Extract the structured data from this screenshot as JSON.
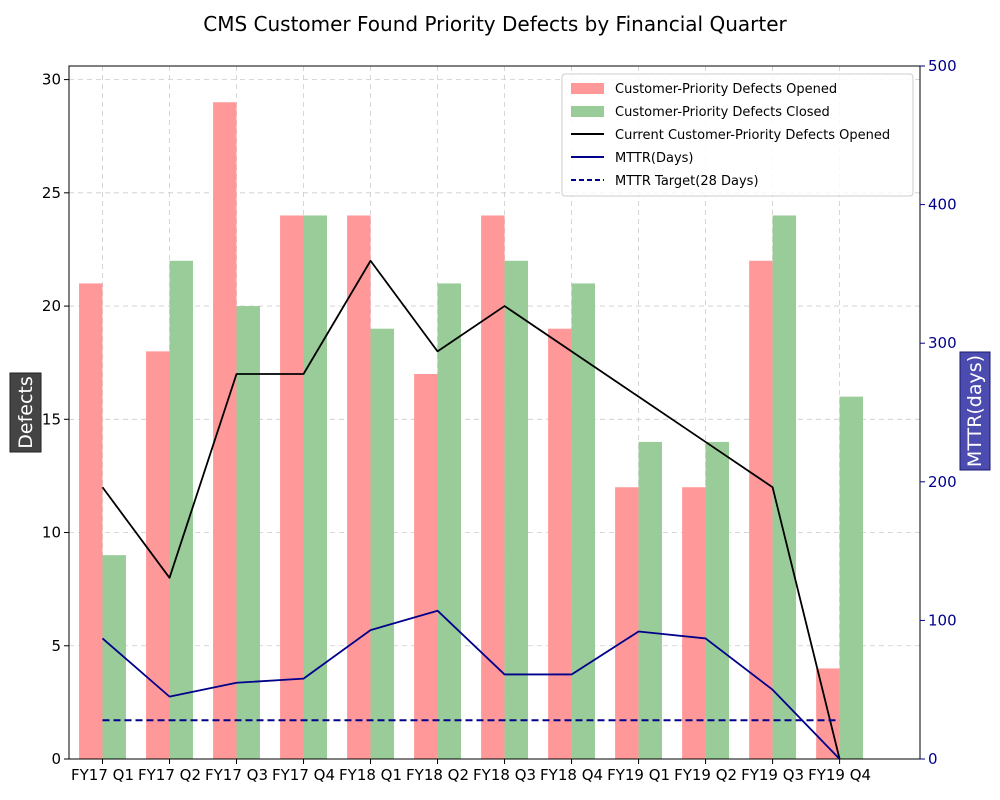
{
  "chart_data": {
    "type": "bar",
    "title": "CMS Customer Found Priority Defects by Financial Quarter",
    "categories": [
      "FY17 Q1",
      "FY17 Q2",
      "FY17 Q3",
      "FY17 Q4",
      "FY18 Q1",
      "FY18 Q2",
      "FY18 Q3",
      "FY18 Q4",
      "FY19 Q1",
      "FY19 Q2",
      "FY19 Q3",
      "FY19 Q4"
    ],
    "ylabel": "Defects",
    "ylabel_right": "MTTR(days)",
    "ylim": [
      0,
      30.6
    ],
    "ylim_right": [
      0,
      500
    ],
    "yticks": [
      0,
      5,
      10,
      15,
      20,
      25,
      30
    ],
    "yticks_right": [
      0,
      100,
      200,
      300,
      400,
      500
    ],
    "grid": true,
    "legend_position": "top-right",
    "series": [
      {
        "name": "Customer-Priority Defects Opened",
        "type": "bar",
        "axis": "left",
        "color": "#ff9999",
        "values": [
          21,
          18,
          29,
          24,
          24,
          17,
          24,
          19,
          12,
          12,
          22,
          4
        ]
      },
      {
        "name": "Customer-Priority Defects Closed",
        "type": "bar",
        "axis": "left",
        "color": "#99cc99",
        "values": [
          9,
          22,
          20,
          24,
          19,
          21,
          22,
          21,
          14,
          14,
          24,
          16
        ]
      },
      {
        "name": "Current Customer-Priority Defects Opened",
        "type": "line",
        "axis": "left",
        "color": "#000000",
        "values": [
          12,
          8,
          17,
          17,
          22,
          18,
          20,
          18,
          16,
          14,
          12,
          0
        ]
      },
      {
        "name": "MTTR(Days)",
        "type": "line",
        "axis": "right",
        "color": "#00008b",
        "values": [
          87,
          45,
          55,
          58,
          93,
          107,
          61,
          61,
          92,
          87,
          50,
          0
        ]
      },
      {
        "name": "MTTR Target(28 Days)",
        "type": "line",
        "axis": "right",
        "color": "#00008b",
        "dashed": true,
        "values": [
          28,
          28,
          28,
          28,
          28,
          28,
          28,
          28,
          28,
          28,
          28,
          28
        ]
      }
    ],
    "colors": {
      "axis_right": "#00008b",
      "ylabel_box": "#444444",
      "ylabel_right_box": "#4b4bb0",
      "grid": "#cccccc"
    }
  }
}
